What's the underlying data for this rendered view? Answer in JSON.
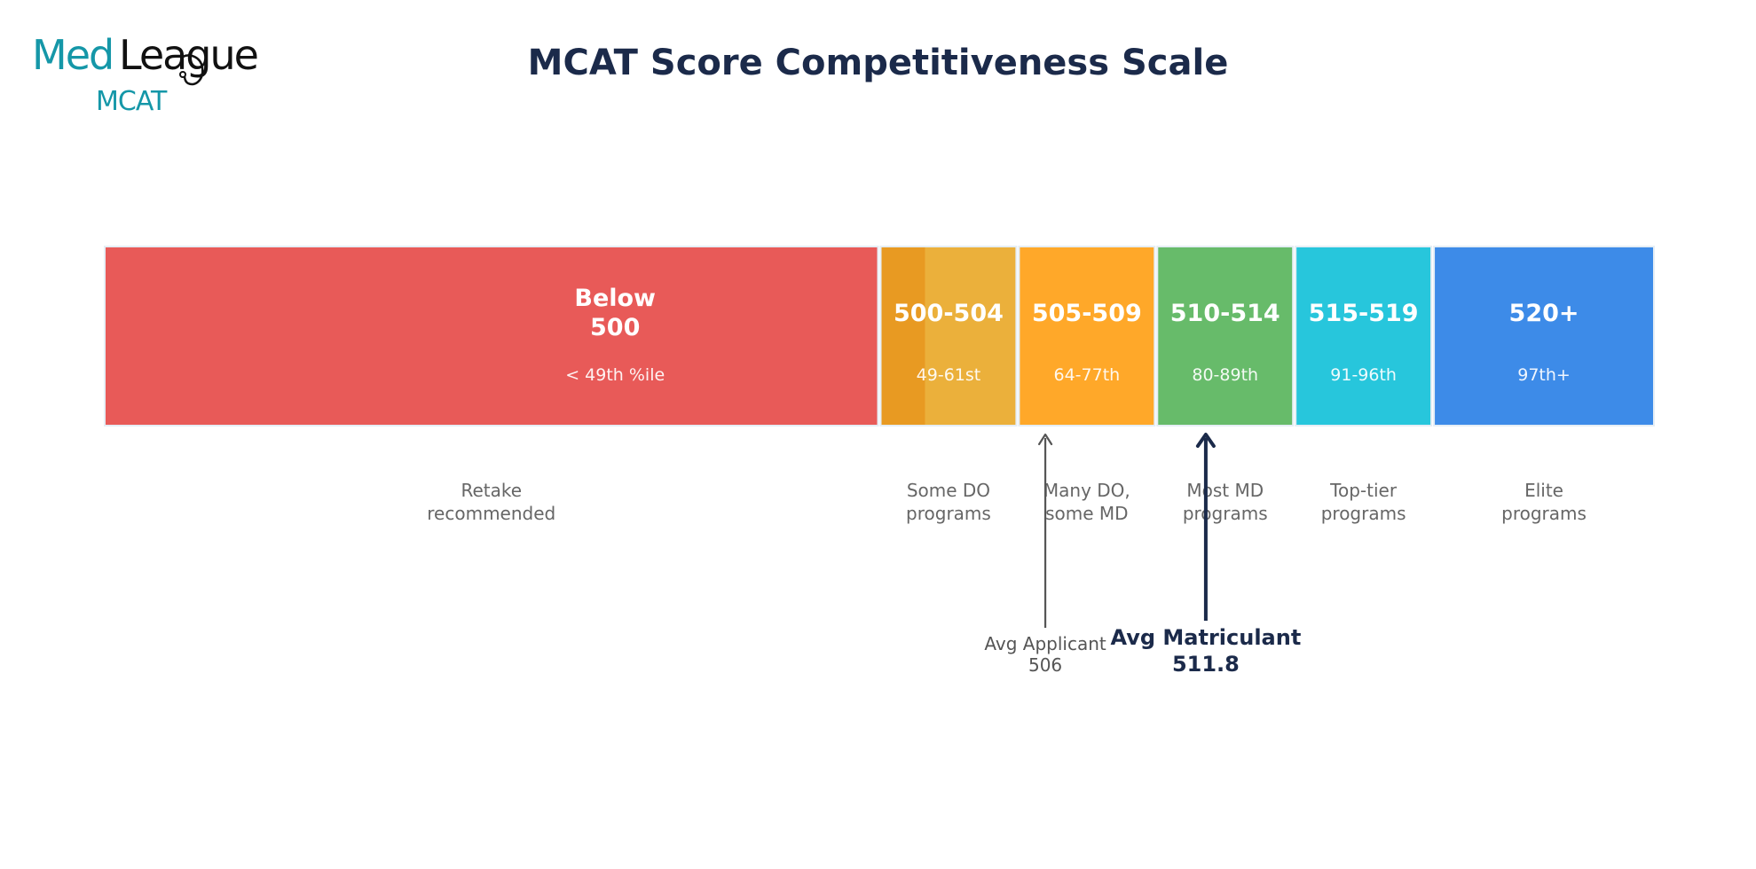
{
  "logo": {
    "text_med": "Med",
    "text_league": "League",
    "text_mcat": "MCAT",
    "color_teal": "#1597a8",
    "color_dark": "#111111"
  },
  "title": "MCAT Score Competitiveness Scale",
  "colors": {
    "title": "#1b2a4a",
    "desc": "#666666",
    "marker_applicant": "#555555",
    "marker_matriculant": "#1b2a4a"
  },
  "segments": [
    {
      "range_line1": "Below",
      "range_line2": "500",
      "percentile": "< 49th %ile",
      "description_line1": "Retake",
      "description_line2": "recommended",
      "color": "#e85a58",
      "score_from": 472,
      "score_to": 500
    },
    {
      "range_line1": "500-504",
      "range_line2": "",
      "percentile": "49-61st",
      "description_line1": "Some DO",
      "description_line2": "programs",
      "color": "#ebb03b",
      "accent_color": "#e89a22",
      "score_from": 500,
      "score_to": 505
    },
    {
      "range_line1": "505-509",
      "range_line2": "",
      "percentile": "64-77th",
      "description_line1": "Many DO,",
      "description_line2": "some MD",
      "color": "#ffa829",
      "score_from": 505,
      "score_to": 510
    },
    {
      "range_line1": "510-514",
      "range_line2": "",
      "percentile": "80-89th",
      "description_line1": "Most MD",
      "description_line2": "programs",
      "color": "#67bb6a",
      "score_from": 510,
      "score_to": 515
    },
    {
      "range_line1": "515-519",
      "range_line2": "",
      "percentile": "91-96th",
      "description_line1": "Top-tier",
      "description_line2": "programs",
      "color": "#27c6dc",
      "score_from": 515,
      "score_to": 520
    },
    {
      "range_line1": "520+",
      "range_line2": "",
      "percentile": "97th+",
      "description_line1": "Elite",
      "description_line2": "programs",
      "color": "#3d8be8",
      "score_from": 520,
      "score_to": 528
    }
  ],
  "markers": [
    {
      "label_line1": "Avg Applicant",
      "label_line2": "506",
      "score": 506,
      "style": "applicant"
    },
    {
      "label_line1": "Avg Matriculant",
      "label_line2": "511.8",
      "score": 511.8,
      "style": "matriculant"
    }
  ]
}
